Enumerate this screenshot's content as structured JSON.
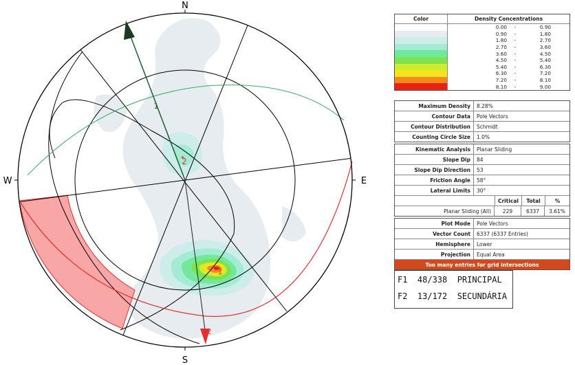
{
  "stereonet": {
    "compass": {
      "north": "N",
      "south": "S",
      "east": "E",
      "west": "W"
    },
    "pole_labels": {
      "p1": "1",
      "p2": "2"
    },
    "set_markers": {
      "m1": "1",
      "m2": "2"
    },
    "colors": {
      "outline": "#000000",
      "slope_plane": "#e23030",
      "friction_cone": "#3aaa66",
      "critical_zone": "#f9a6a6",
      "vector": "#1e5e2e"
    }
  },
  "legend": {
    "color_header": "Color",
    "density_header": "Density Concentrations",
    "bins": [
      {
        "lo": "0.00",
        "hi": "0.90",
        "color": "#ffffff"
      },
      {
        "lo": "0.90",
        "hi": "1.80",
        "color": "#e7ecf1"
      },
      {
        "lo": "1.80",
        "hi": "2.70",
        "color": "#ccedea"
      },
      {
        "lo": "2.70",
        "hi": "3.60",
        "color": "#a3ebd2"
      },
      {
        "lo": "3.60",
        "hi": "4.50",
        "color": "#72e89b"
      },
      {
        "lo": "4.50",
        "hi": "5.40",
        "color": "#7ce24e"
      },
      {
        "lo": "5.40",
        "hi": "6.30",
        "color": "#d1ec2c"
      },
      {
        "lo": "6.30",
        "hi": "7.20",
        "color": "#f7e31c"
      },
      {
        "lo": "7.20",
        "hi": "8.10",
        "color": "#f48a1d"
      },
      {
        "lo": "8.10",
        "hi": "9.00",
        "color": "#e82314"
      }
    ]
  },
  "contour_info": [
    {
      "label": "Maximum Density",
      "value": "8.28%"
    },
    {
      "label": "Contour Data",
      "value": "Pole Vectors"
    },
    {
      "label": "Contour Distribution",
      "value": "Schmidt"
    },
    {
      "label": "Counting Circle Size",
      "value": "1.0%"
    }
  ],
  "kinematic": [
    {
      "label": "Kinematic Analysis",
      "value": "Planar Sliding"
    },
    {
      "label": "Slope Dip",
      "value": "84"
    },
    {
      "label": "Slope Dip Direction",
      "value": "53"
    },
    {
      "label": "Friction Angle",
      "value": "58°"
    },
    {
      "label": "Lateral Limits",
      "value": "30°"
    }
  ],
  "results": {
    "headers": {
      "critical": "Critical",
      "total": "Total",
      "percent": "%"
    },
    "row": {
      "name": "Planar Sliding (All)",
      "critical": "229",
      "total": "6337",
      "percent": "3.61%"
    }
  },
  "plot_info": [
    {
      "label": "Plot Mode",
      "value": "Pole Vectors"
    },
    {
      "label": "Vector Count",
      "value": "6337 (6337 Entries)"
    },
    {
      "label": "Hemisphere",
      "value": "Lower"
    },
    {
      "label": "Projection",
      "value": "Equal Area"
    }
  ],
  "warning": "Too many entries for grid intersections",
  "sets": [
    {
      "text": "F1  48/338  PRINCIPAL"
    },
    {
      "text": "F2  13/172  SECUNDÁRIA"
    }
  ]
}
